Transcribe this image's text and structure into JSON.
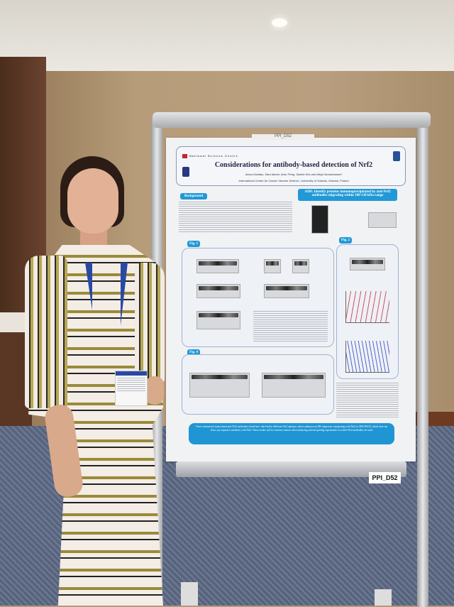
{
  "scene": {
    "wall_color": "#b79c7a",
    "carpet_color": "#5f6b85",
    "poster_accent": "#2199d6"
  },
  "poster": {
    "top_tag": "PPI_D52",
    "org": "National Science Centre",
    "title": "Considerations for antibody-based detection of Nrf2",
    "authors": "Aloza Gowiłas, Sara Manei, Artur Pring, Sashin Kris and Alicja Sznarkowska*",
    "affiliation": "International Centre for Cancer Vaccine Science, University of Gdansk, Gdansk, Poland",
    "background_label": "Background",
    "aim": "AIM: Identify proteins immunoprecipitated by anti-Nrf2 antibodies migrating within 100-130 kDa range",
    "fig1": "Fig. 1",
    "fig2": "Fig. 2",
    "fig3": "Fig. 3",
    "fig4": "Fig. 4",
    "conclusion": "Three commercial monoclonal anti-Nrf2 antibodies tested here, that bind to different Nrf2 epitopes, detect unknown an ER chaperone comigrating with Nrf2 in SDS-PAGE, which does not show any sequence similarity with Nrf2. These results call for extreme caution when analyzing and interpreting experiments in which Nrf2 antibodies are used"
  },
  "board_label": "PPI_D52"
}
